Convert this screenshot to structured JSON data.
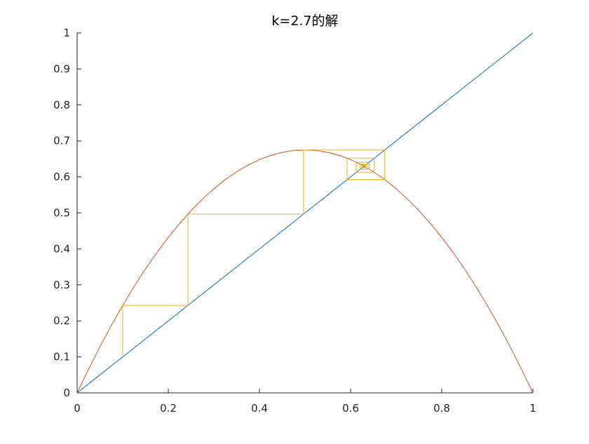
{
  "chart_data": {
    "type": "line",
    "title": "k=2.7的解",
    "xlim": [
      0,
      1
    ],
    "ylim": [
      0,
      1
    ],
    "xticks": [
      0,
      0.2,
      0.4,
      0.6,
      0.8,
      1
    ],
    "yticks": [
      0,
      0.1,
      0.2,
      0.3,
      0.4,
      0.5,
      0.6,
      0.7,
      0.8,
      0.9,
      1
    ],
    "series": [
      {
        "color": "#0072BD",
        "x": [
          0,
          1
        ],
        "values": [
          0,
          1
        ]
      },
      {
        "color": "#D95319",
        "x": [
          0,
          0.025,
          0.05,
          0.075,
          0.1,
          0.125,
          0.15,
          0.175,
          0.2,
          0.225,
          0.25,
          0.275,
          0.3,
          0.325,
          0.35,
          0.375,
          0.4,
          0.425,
          0.45,
          0.475,
          0.5,
          0.525,
          0.55,
          0.575,
          0.6,
          0.625,
          0.65,
          0.675,
          0.7,
          0.725,
          0.75,
          0.775,
          0.8,
          0.825,
          0.85,
          0.875,
          0.9,
          0.925,
          0.95,
          0.975,
          1
        ],
        "values": [
          0,
          0.0658,
          0.1283,
          0.1873,
          0.243,
          0.2953,
          0.3443,
          0.3898,
          0.432,
          0.4708,
          0.5063,
          0.5383,
          0.567,
          0.5923,
          0.6143,
          0.6328,
          0.648,
          0.6598,
          0.6683,
          0.6733,
          0.675,
          0.6733,
          0.6683,
          0.6598,
          0.648,
          0.6328,
          0.6143,
          0.5923,
          0.567,
          0.5383,
          0.5063,
          0.4708,
          0.432,
          0.3898,
          0.3443,
          0.2953,
          0.243,
          0.1873,
          0.1283,
          0.0658,
          0
        ]
      },
      {
        "color": "#EDB120",
        "x": [
          0.1,
          0.1,
          0.243,
          0.243,
          0.4967,
          0.4967,
          0.675,
          0.675,
          0.5923,
          0.5923,
          0.652,
          0.652,
          0.6126,
          0.6126,
          0.6408,
          0.6408,
          0.6215,
          0.6215,
          0.6351,
          0.6351,
          0.6257,
          0.6257,
          0.6323,
          0.6323
        ],
        "values": [
          0.1,
          0.243,
          0.243,
          0.4967,
          0.4967,
          0.675,
          0.675,
          0.5923,
          0.5923,
          0.652,
          0.652,
          0.6126,
          0.6126,
          0.6408,
          0.6408,
          0.6215,
          0.6215,
          0.6351,
          0.6351,
          0.6257,
          0.6257,
          0.6323,
          0.6323,
          0.6277
        ]
      }
    ]
  }
}
